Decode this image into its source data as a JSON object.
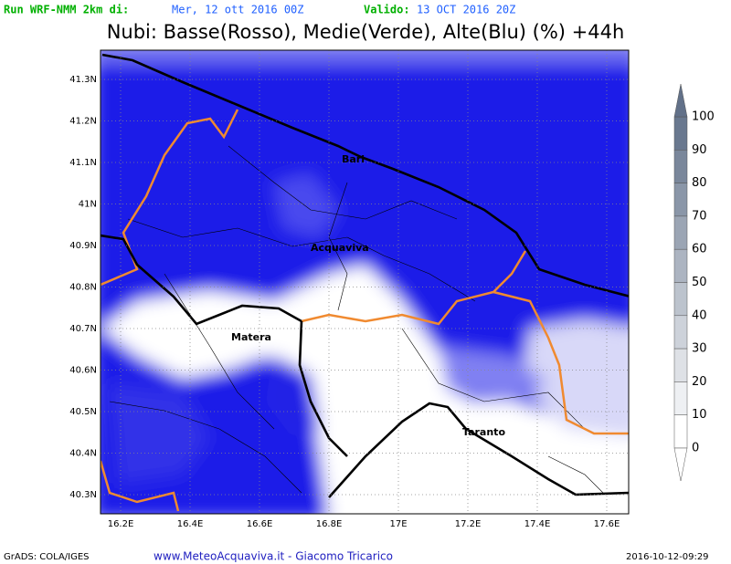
{
  "header": {
    "run_label": "Run WRF-NMM 2km di:",
    "run_date": "Mer, 12 ott 2016 00Z",
    "valid_label": "Valido:",
    "valid_date": "13 OCT 2016 20Z"
  },
  "title": "Nubi: Basse(Rosso), Medie(Verde), Alte(Blu) (%) +44h",
  "map": {
    "lat_labels": [
      "41.3N",
      "41.2N",
      "41.1N",
      "41N",
      "40.9N",
      "40.8N",
      "40.7N",
      "40.6N",
      "40.5N",
      "40.4N",
      "40.3N"
    ],
    "lon_labels": [
      "16.2E",
      "16.4E",
      "16.6E",
      "16.8E",
      "17E",
      "17.2E",
      "17.4E",
      "17.6E"
    ],
    "places": [
      "Bari",
      "Acquaviva",
      "Matera",
      "Taranto"
    ]
  },
  "colorbar": {
    "labels": [
      100,
      90,
      80,
      70,
      60,
      50,
      40,
      30,
      20,
      10,
      0
    ]
  },
  "footer": {
    "software": "GrADS: COLA/IGES",
    "site": "www.MeteoAcquaviva.it - Giacomo Tricarico",
    "timestamp": "2016-10-12-09:29"
  }
}
